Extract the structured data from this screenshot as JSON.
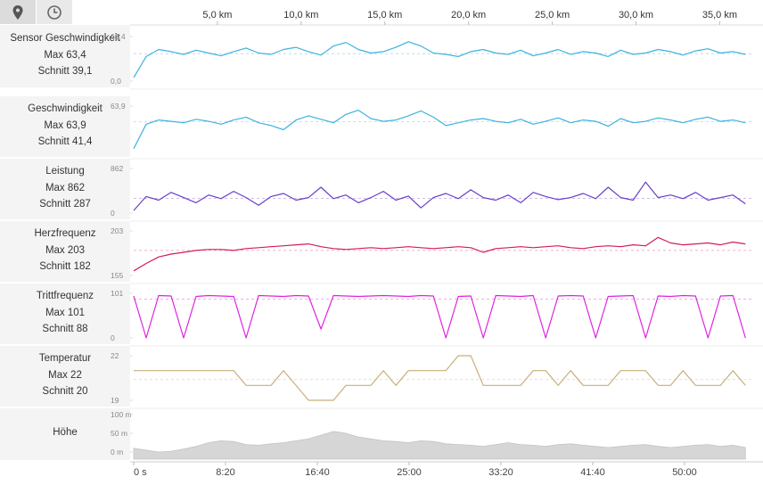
{
  "chart_data": {
    "type": "line",
    "x": [
      0,
      68,
      136,
      204,
      272,
      340,
      408,
      476,
      544,
      612,
      680,
      748,
      816,
      884,
      952,
      1020,
      1088,
      1156,
      1224,
      1292,
      1360,
      1428,
      1496,
      1564,
      1632,
      1700,
      1768,
      1836,
      1904,
      1972,
      2040,
      2108,
      2176,
      2244,
      2312,
      2380,
      2448,
      2516,
      2584,
      2652,
      2720,
      2788,
      2856,
      2924,
      2992,
      3060,
      3128,
      3196,
      3264,
      3332
    ],
    "xlim": [
      0,
      3374
    ],
    "xticks": [
      {
        "value": 0,
        "label": "0 s"
      },
      {
        "value": 500,
        "label": "8:20"
      },
      {
        "value": 1000,
        "label": "16:40"
      },
      {
        "value": 1500,
        "label": "25:00"
      },
      {
        "value": 2000,
        "label": "33:20"
      },
      {
        "value": 2500,
        "label": "41:40"
      },
      {
        "value": 3000,
        "label": "50:00"
      }
    ],
    "x2lim": [
      0,
      37
    ],
    "x2ticks": [
      {
        "value": 5,
        "label": "5,0 km"
      },
      {
        "value": 10,
        "label": "10,0 km"
      },
      {
        "value": 15,
        "label": "15,0 km"
      },
      {
        "value": 20,
        "label": "20,0 km"
      },
      {
        "value": 25,
        "label": "25,0 km"
      },
      {
        "value": 30,
        "label": "30,0 km"
      },
      {
        "value": 35,
        "label": "35,0 km"
      }
    ],
    "series": [
      {
        "name": "Sensor Geschwindigkeit",
        "color": "#3db2de",
        "max": {
          "value": 63.4,
          "label": "Max 63,4"
        },
        "mean": {
          "value": 39.1,
          "label": "Schnitt 39,1"
        },
        "ylim": [
          0,
          63.4
        ],
        "yticks": [
          {
            "value": 0,
            "label": "0,0"
          },
          {
            "value": 63.4,
            "label": "63,4"
          }
        ],
        "values": [
          5,
          35,
          45,
          42,
          38,
          44,
          40,
          36,
          42,
          47,
          40,
          38,
          45,
          48,
          42,
          37,
          50,
          55,
          45,
          40,
          42,
          48,
          56,
          50,
          40,
          38,
          35,
          42,
          45,
          40,
          38,
          44,
          36,
          40,
          45,
          38,
          42,
          40,
          35,
          44,
          38,
          40,
          45,
          42,
          37,
          43,
          46,
          40,
          42,
          38
        ]
      },
      {
        "name": "Geschwindigkeit",
        "color": "#3db2de",
        "max": {
          "value": 63.9,
          "label": "Max 63,9"
        },
        "mean": {
          "value": 41.4,
          "label": "Schnitt 41,4"
        },
        "ylim": [
          0,
          63.9
        ],
        "yticks": [
          {
            "value": 63.9,
            "label": "63,9"
          }
        ],
        "values": [
          3,
          38,
          44,
          42,
          40,
          45,
          42,
          38,
          44,
          48,
          40,
          36,
          30,
          44,
          50,
          45,
          40,
          52,
          58,
          46,
          42,
          44,
          50,
          57,
          48,
          36,
          40,
          44,
          46,
          42,
          40,
          45,
          38,
          42,
          47,
          40,
          44,
          42,
          35,
          46,
          40,
          42,
          47,
          44,
          40,
          45,
          48,
          42,
          44,
          40
        ]
      },
      {
        "name": "Leistung",
        "color": "#6a3fc6",
        "max": {
          "value": 862,
          "label": "Max 862"
        },
        "mean": {
          "value": 287,
          "label": "Schnitt 287"
        },
        "ylim": [
          0,
          862
        ],
        "yticks": [
          0,
          862
        ],
        "values": [
          50,
          320,
          250,
          400,
          300,
          200,
          350,
          280,
          420,
          300,
          150,
          320,
          380,
          250,
          300,
          500,
          280,
          350,
          200,
          300,
          420,
          250,
          330,
          100,
          300,
          380,
          280,
          450,
          300,
          250,
          350,
          200,
          400,
          320,
          260,
          300,
          380,
          280,
          500,
          300,
          250,
          600,
          300,
          350,
          280,
          400,
          250,
          300,
          350,
          180
        ]
      },
      {
        "name": "Herzfrequenz",
        "color": "#d6195e",
        "max": {
          "value": 203,
          "label": "Max 203"
        },
        "mean": {
          "value": 182,
          "label": "Schnitt 182"
        },
        "ylim": [
          155,
          203
        ],
        "yticks": [
          155,
          203
        ],
        "values": [
          160,
          168,
          175,
          178,
          180,
          182,
          183,
          183,
          182,
          184,
          185,
          186,
          187,
          188,
          189,
          186,
          184,
          183,
          184,
          185,
          184,
          185,
          186,
          185,
          184,
          185,
          186,
          185,
          180,
          184,
          185,
          186,
          185,
          186,
          187,
          185,
          184,
          186,
          187,
          186,
          188,
          187,
          196,
          190,
          188,
          189,
          190,
          188,
          191,
          189
        ]
      },
      {
        "name": "Trittfrequenz",
        "color": "#e021e0",
        "max": {
          "value": 101,
          "label": "Max 101"
        },
        "mean": {
          "value": 88,
          "label": "Schnitt 88"
        },
        "ylim": [
          0,
          101
        ],
        "yticks": [
          0,
          101
        ],
        "values": [
          95,
          0,
          96,
          95,
          0,
          94,
          96,
          95,
          94,
          0,
          96,
          95,
          94,
          96,
          95,
          20,
          96,
          95,
          94,
          95,
          96,
          95,
          94,
          96,
          95,
          0,
          94,
          95,
          0,
          96,
          95,
          94,
          96,
          0,
          95,
          96,
          95,
          0,
          94,
          95,
          96,
          0,
          95,
          94,
          96,
          95,
          0,
          95,
          96,
          0
        ]
      },
      {
        "name": "Temperatur",
        "color": "#c8b078",
        "max": {
          "value": 22,
          "label": "Max 22"
        },
        "mean": {
          "value": 20.4,
          "label": "Schnitt 20"
        },
        "ylim": [
          19,
          22
        ],
        "yticks": [
          19,
          22
        ],
        "values": [
          21,
          21,
          21,
          21,
          21,
          21,
          21,
          21,
          21,
          20,
          20,
          20,
          21,
          20,
          19,
          19,
          19,
          20,
          20,
          20,
          21,
          20,
          21,
          21,
          21,
          21,
          22,
          22,
          20,
          20,
          20,
          20,
          21,
          21,
          20,
          21,
          20,
          20,
          20,
          21,
          21,
          21,
          20,
          20,
          21,
          20,
          20,
          20,
          21,
          20
        ]
      },
      {
        "name": "Höhe",
        "color": "#d6d6d6",
        "fill": true,
        "ylim": [
          -19,
          107
        ],
        "yticks": [
          {
            "value": 0,
            "label": "0 m"
          },
          {
            "value": 50,
            "label": "50 m"
          },
          {
            "value": 100,
            "label": "100 m"
          }
        ],
        "values": [
          10,
          5,
          0,
          2,
          8,
          15,
          25,
          30,
          28,
          20,
          18,
          22,
          25,
          30,
          35,
          45,
          55,
          50,
          40,
          35,
          30,
          28,
          25,
          30,
          28,
          22,
          20,
          18,
          15,
          20,
          25,
          20,
          18,
          15,
          20,
          22,
          18,
          15,
          12,
          15,
          18,
          20,
          15,
          12,
          15,
          18,
          20,
          15,
          18,
          12
        ]
      }
    ]
  }
}
